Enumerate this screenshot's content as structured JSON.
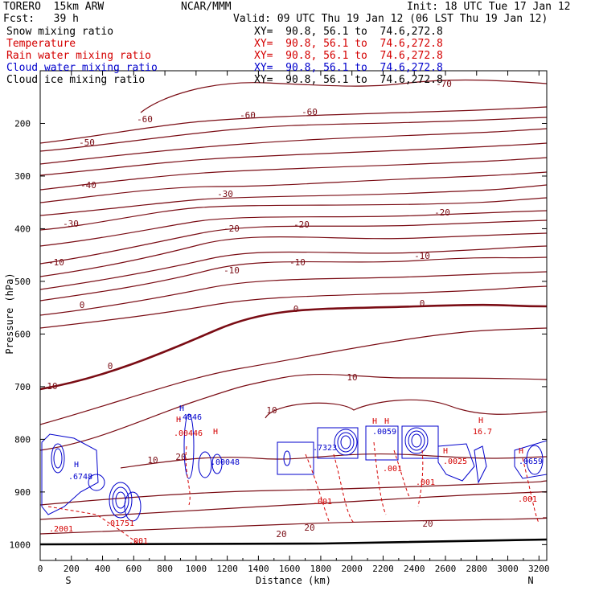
{
  "header": {
    "model": "TORERO  15km ARW",
    "org": "NCAR/MMM",
    "init": "Init: 18 UTC Tue 17 Jan 12",
    "fcst": "Fcst:   39 h",
    "valid": "Valid: 09 UTC Thu 19 Jan 12 (06 LST Thu 19 Jan 12)"
  },
  "legend": [
    {
      "name": "Snow mixing ratio",
      "xy": "XY=  90.8, 56.1 to  74.6,272.8",
      "color": "#000000"
    },
    {
      "name": "Temperature",
      "xy": "XY=  90.8, 56.1 to  74.6,272.8",
      "color": "#d40000"
    },
    {
      "name": "Rain water mixing ratio",
      "xy": "XY=  90.8, 56.1 to  74.6,272.8",
      "color": "#d40000"
    },
    {
      "name": "Cloud water mixing ratio",
      "xy": "XY=  90.8, 56.1 to  74.6,272.8",
      "color": "#0000cc"
    },
    {
      "name": "Cloud ice mixing ratio",
      "xy": "XY=  90.8, 56.1 to  74.6,272.8",
      "color": "#000000"
    }
  ],
  "chart_data": {
    "type": "contour",
    "xlabel": "Distance (km)",
    "ylabel": "Pressure (hPa)",
    "xlim": [
      0,
      3250
    ],
    "ylim": [
      1030,
      100
    ],
    "xticks": [
      "0",
      "200",
      "400",
      "600",
      "800",
      "1000",
      "1200",
      "1400",
      "1600",
      "1800",
      "2000",
      "2200",
      "2400",
      "2600",
      "2800",
      "3000",
      "3200"
    ],
    "yticks": [
      "200",
      "300",
      "400",
      "500",
      "600",
      "700",
      "800",
      "900",
      "1000"
    ],
    "x_end_labels": {
      "left": "S",
      "right": "N"
    },
    "temperature_contour_labels": [
      "-70",
      "-60",
      "-60",
      "-60",
      "-50",
      "-40",
      "-30",
      "-30",
      "-20",
      "-20",
      "-20",
      "-10",
      "-10",
      "-10",
      "-10",
      "0",
      "0",
      "0",
      "0",
      "10",
      "10",
      "10",
      "10",
      "20",
      "20",
      "20",
      "20"
    ],
    "mixing_ratio_labels": [
      "H",
      "H",
      ".4846",
      ".00446",
      "H",
      ".00048",
      ".6748",
      "H",
      ".01751",
      ".2001",
      ".7323",
      "H",
      "H",
      ".0059",
      "H",
      "16.7",
      "H",
      ".0025",
      "H",
      ".0659",
      ".001",
      ".001",
      ".001",
      ".001",
      ".001"
    ]
  },
  "colors": {
    "temperature": "#7a0c14",
    "rain": "#d40000",
    "cloud_water": "#0000cc",
    "axis": "#000000"
  }
}
